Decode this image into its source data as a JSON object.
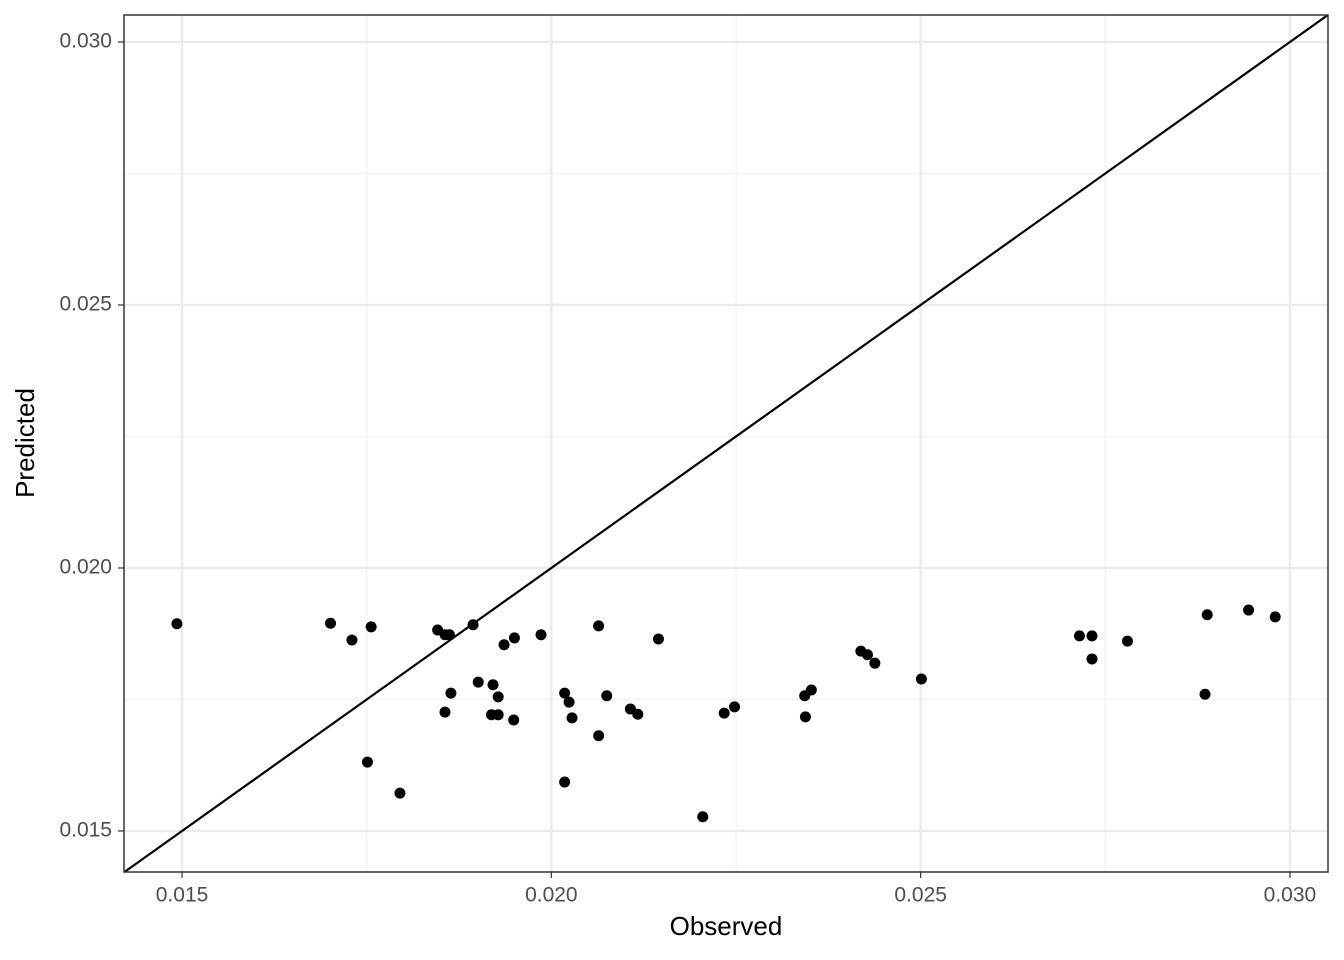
{
  "chart_data": {
    "type": "scatter",
    "x_label": "Observed",
    "y_label": "Predicted",
    "x": [
      0.01493,
      0.01701,
      0.0173,
      0.01756,
      0.01751,
      0.01795,
      0.01846,
      0.01856,
      0.01862,
      0.01894,
      0.01856,
      0.01864,
      0.01901,
      0.01921,
      0.01928,
      0.01919,
      0.01928,
      0.01949,
      0.01936,
      0.0195,
      0.01986,
      0.02018,
      0.02024,
      0.02028,
      0.02018,
      0.02064,
      0.02075,
      0.02064,
      0.02107,
      0.02117,
      0.02145,
      0.02205,
      0.02234,
      0.02248,
      0.02343,
      0.02352,
      0.02344,
      0.02419,
      0.02428,
      0.02438,
      0.02501,
      0.02715,
      0.02732,
      0.02732,
      0.0278,
      0.02888,
      0.02885,
      0.02944,
      0.0298
    ],
    "values": [
      0.01894,
      0.01895,
      0.01863,
      0.01888,
      0.01631,
      0.01572,
      0.01882,
      0.01873,
      0.01873,
      0.01892,
      0.01726,
      0.01762,
      0.01783,
      0.01778,
      0.01755,
      0.01721,
      0.01721,
      0.01711,
      0.01854,
      0.01867,
      0.01873,
      0.01762,
      0.01745,
      0.01715,
      0.01593,
      0.0189,
      0.01757,
      0.01681,
      0.01732,
      0.01722,
      0.01865,
      0.01527,
      0.01724,
      0.01736,
      0.01757,
      0.01768,
      0.01717,
      0.01842,
      0.01835,
      0.01819,
      0.01789,
      0.01871,
      0.01871,
      0.01827,
      0.01861,
      0.01911,
      0.0176,
      0.0192,
      0.01907
    ],
    "color": "#000000",
    "xlim": [
      0.014214,
      0.030515
    ],
    "ylim": [
      0.01422,
      0.030513
    ],
    "xticks": [
      0.015,
      {
        "value": 0.02,
        "label": "0.020"
      },
      0.025,
      {
        "value": 0.03,
        "label": "0.030"
      }
    ],
    "yticks": [
      0.015,
      {
        "value": 0.02,
        "label": "0.020"
      },
      0.025,
      {
        "value": 0.03,
        "label": "0.030"
      }
    ],
    "x_minor_grid": [
      0.0175,
      0.0225,
      0.0275
    ],
    "y_minor_grid": [
      0.0175,
      0.0225,
      0.0275
    ],
    "grid": true,
    "identity_line": true
  }
}
